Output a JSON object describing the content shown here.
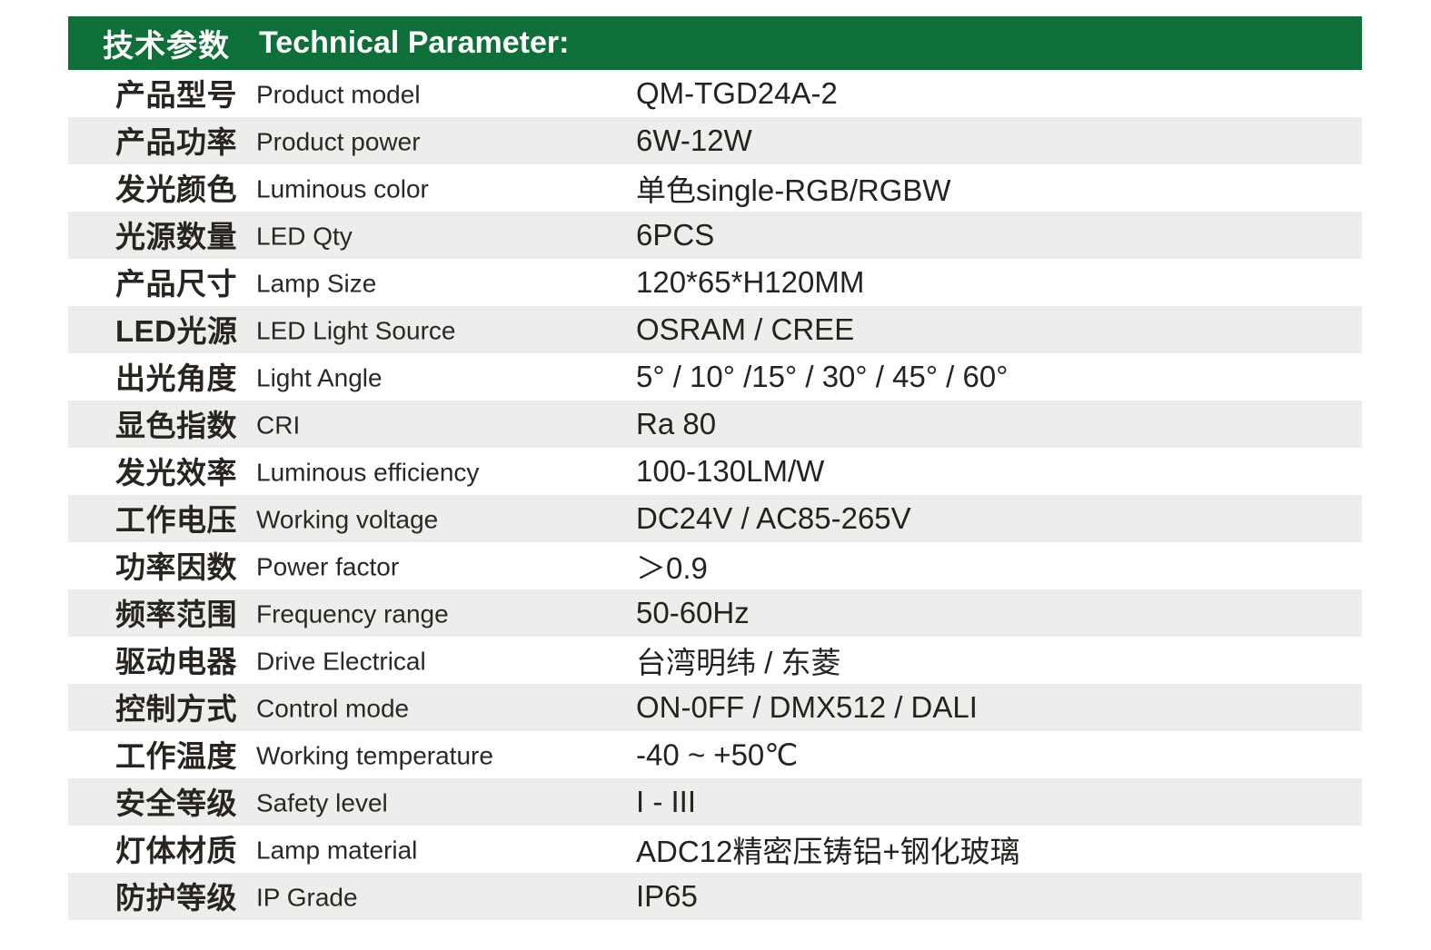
{
  "colors": {
    "header_bg": "#0E7038",
    "header_text": "#FFFFFF",
    "row_alt_bg": "#EDEDEC",
    "text": "#282521"
  },
  "header": {
    "title_zh": "技术参数",
    "title_en": "Technical Parameter:"
  },
  "table": {
    "rows": [
      {
        "zh": "产品型号",
        "en": "Product model",
        "value": "QM-TGD24A-2"
      },
      {
        "zh": "产品功率",
        "en": "Product power",
        "value": "6W-12W"
      },
      {
        "zh": "发光颜色",
        "en": "Luminous color",
        "value": "单色single-RGB/RGBW"
      },
      {
        "zh": "光源数量",
        "en": "LED Qty",
        "value": "6PCS"
      },
      {
        "zh": "产品尺寸",
        "en": "Lamp Size",
        "value": "120*65*H120MM"
      },
      {
        "zh": "LED光源",
        "en": "LED Light Source",
        "value": "OSRAM / CREE"
      },
      {
        "zh": "出光角度",
        "en": "Light Angle",
        "value": "5° / 10° /15° / 30° / 45° / 60°"
      },
      {
        "zh": "显色指数",
        "en": "CRI",
        "value": "Ra 80"
      },
      {
        "zh": "发光效率",
        "en": "Luminous efficiency",
        "value": "100-130LM/W"
      },
      {
        "zh": "工作电压",
        "en": "Working voltage",
        "value": "DC24V / AC85-265V"
      },
      {
        "zh": "功率因数",
        "en": "Power factor",
        "value": "＞0.9"
      },
      {
        "zh": "频率范围",
        "en": "Frequency range",
        "value": "50-60Hz"
      },
      {
        "zh": "驱动电器",
        "en": "Drive Electrical",
        "value": "台湾明纬 / 东菱"
      },
      {
        "zh": "控制方式",
        "en": "Control mode",
        "value": "ON-0FF / DMX512 / DALI"
      },
      {
        "zh": "工作温度",
        "en": "Working temperature",
        "value": "-40 ~ +50℃"
      },
      {
        "zh": "安全等级",
        "en": "Safety level",
        "value": "I - III"
      },
      {
        "zh": "灯体材质",
        "en": "Lamp material",
        "value": "ADC12精密压铸铝+钢化玻璃"
      },
      {
        "zh": "防护等级",
        "en": "IP Grade",
        "value": "IP65"
      }
    ]
  }
}
